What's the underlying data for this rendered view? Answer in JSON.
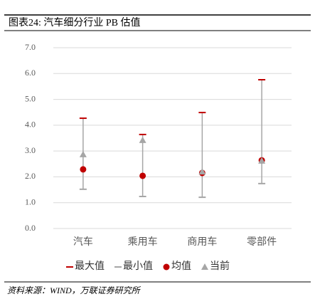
{
  "header": "图表24: 汽车细分行业 PB 估值",
  "chart_data": {
    "type": "range",
    "categories": [
      "汽车",
      "乘用车",
      "商用车",
      "零部件"
    ],
    "series": [
      {
        "name": "最大值",
        "color": "#c00000",
        "marker": "dash",
        "values": [
          4.27,
          3.64,
          4.49,
          5.76
        ]
      },
      {
        "name": "最小值",
        "color": "#a6a6a6",
        "marker": "dash",
        "values": [
          1.52,
          1.24,
          1.21,
          1.74
        ]
      },
      {
        "name": "均值",
        "color": "#c00000",
        "marker": "circle",
        "values": [
          2.29,
          2.04,
          2.15,
          2.64
        ]
      },
      {
        "name": "当前",
        "color": "#a6a6a6",
        "marker": "triangle",
        "values": [
          2.87,
          3.42,
          2.2,
          2.62
        ]
      }
    ],
    "ylim": [
      0,
      7
    ],
    "yticks": [
      {
        "value": 0,
        "label": "0.0"
      },
      {
        "value": 1,
        "label": "1.0"
      },
      {
        "value": 2,
        "label": "2.0"
      },
      {
        "value": 3,
        "label": "3.0"
      },
      {
        "value": 4,
        "label": "4.0"
      },
      {
        "value": 5,
        "label": "5.0"
      },
      {
        "value": 6,
        "label": "6.0"
      },
      {
        "value": 7,
        "label": "7.0"
      }
    ],
    "grid": true
  },
  "footer": "资料来源：WIND，万联证券研究所"
}
